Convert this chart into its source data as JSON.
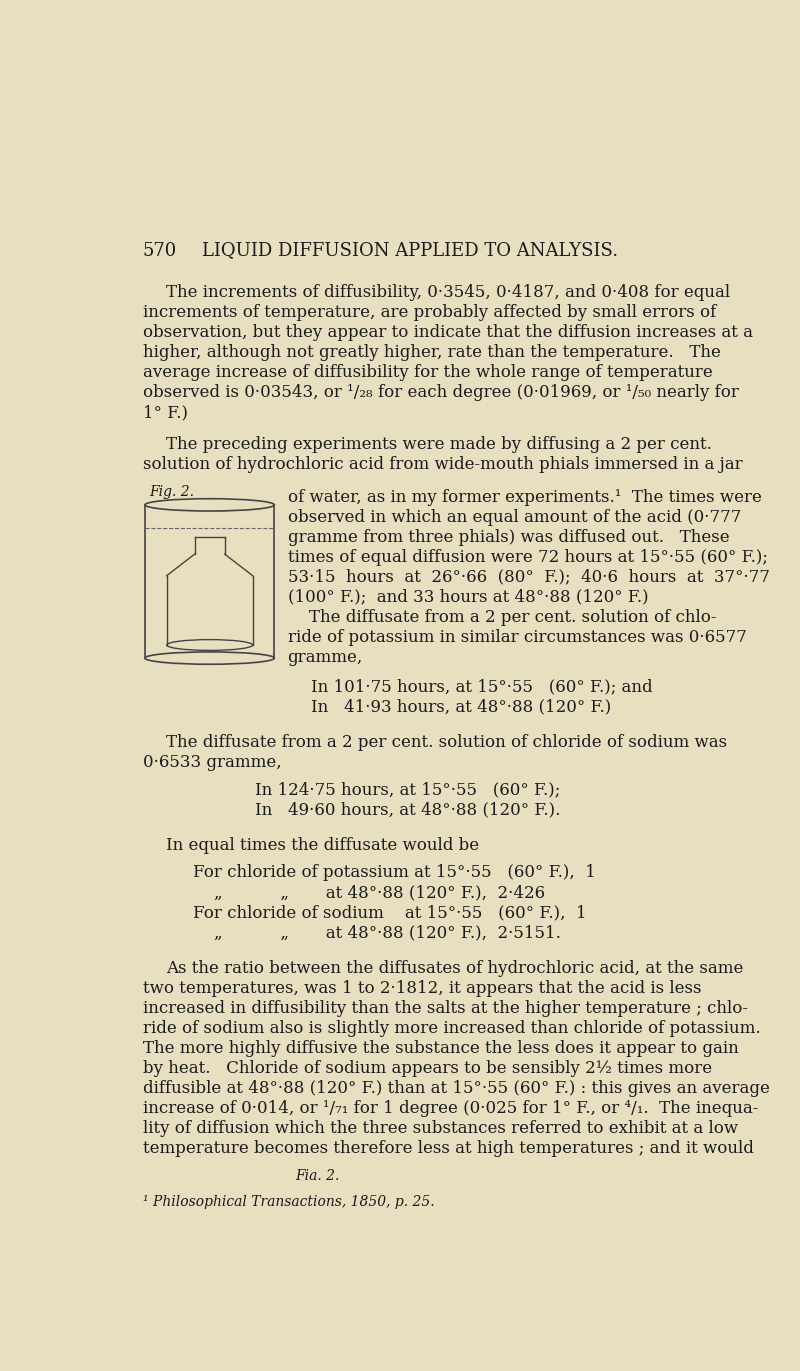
{
  "background_color": "#e8dfc0",
  "page_number": "570",
  "header": "LIQUID DIFFUSION APPLIED TO ANALYSIS.",
  "footer": "¹ Philosophical Transactions, 1850, p. 25."
}
